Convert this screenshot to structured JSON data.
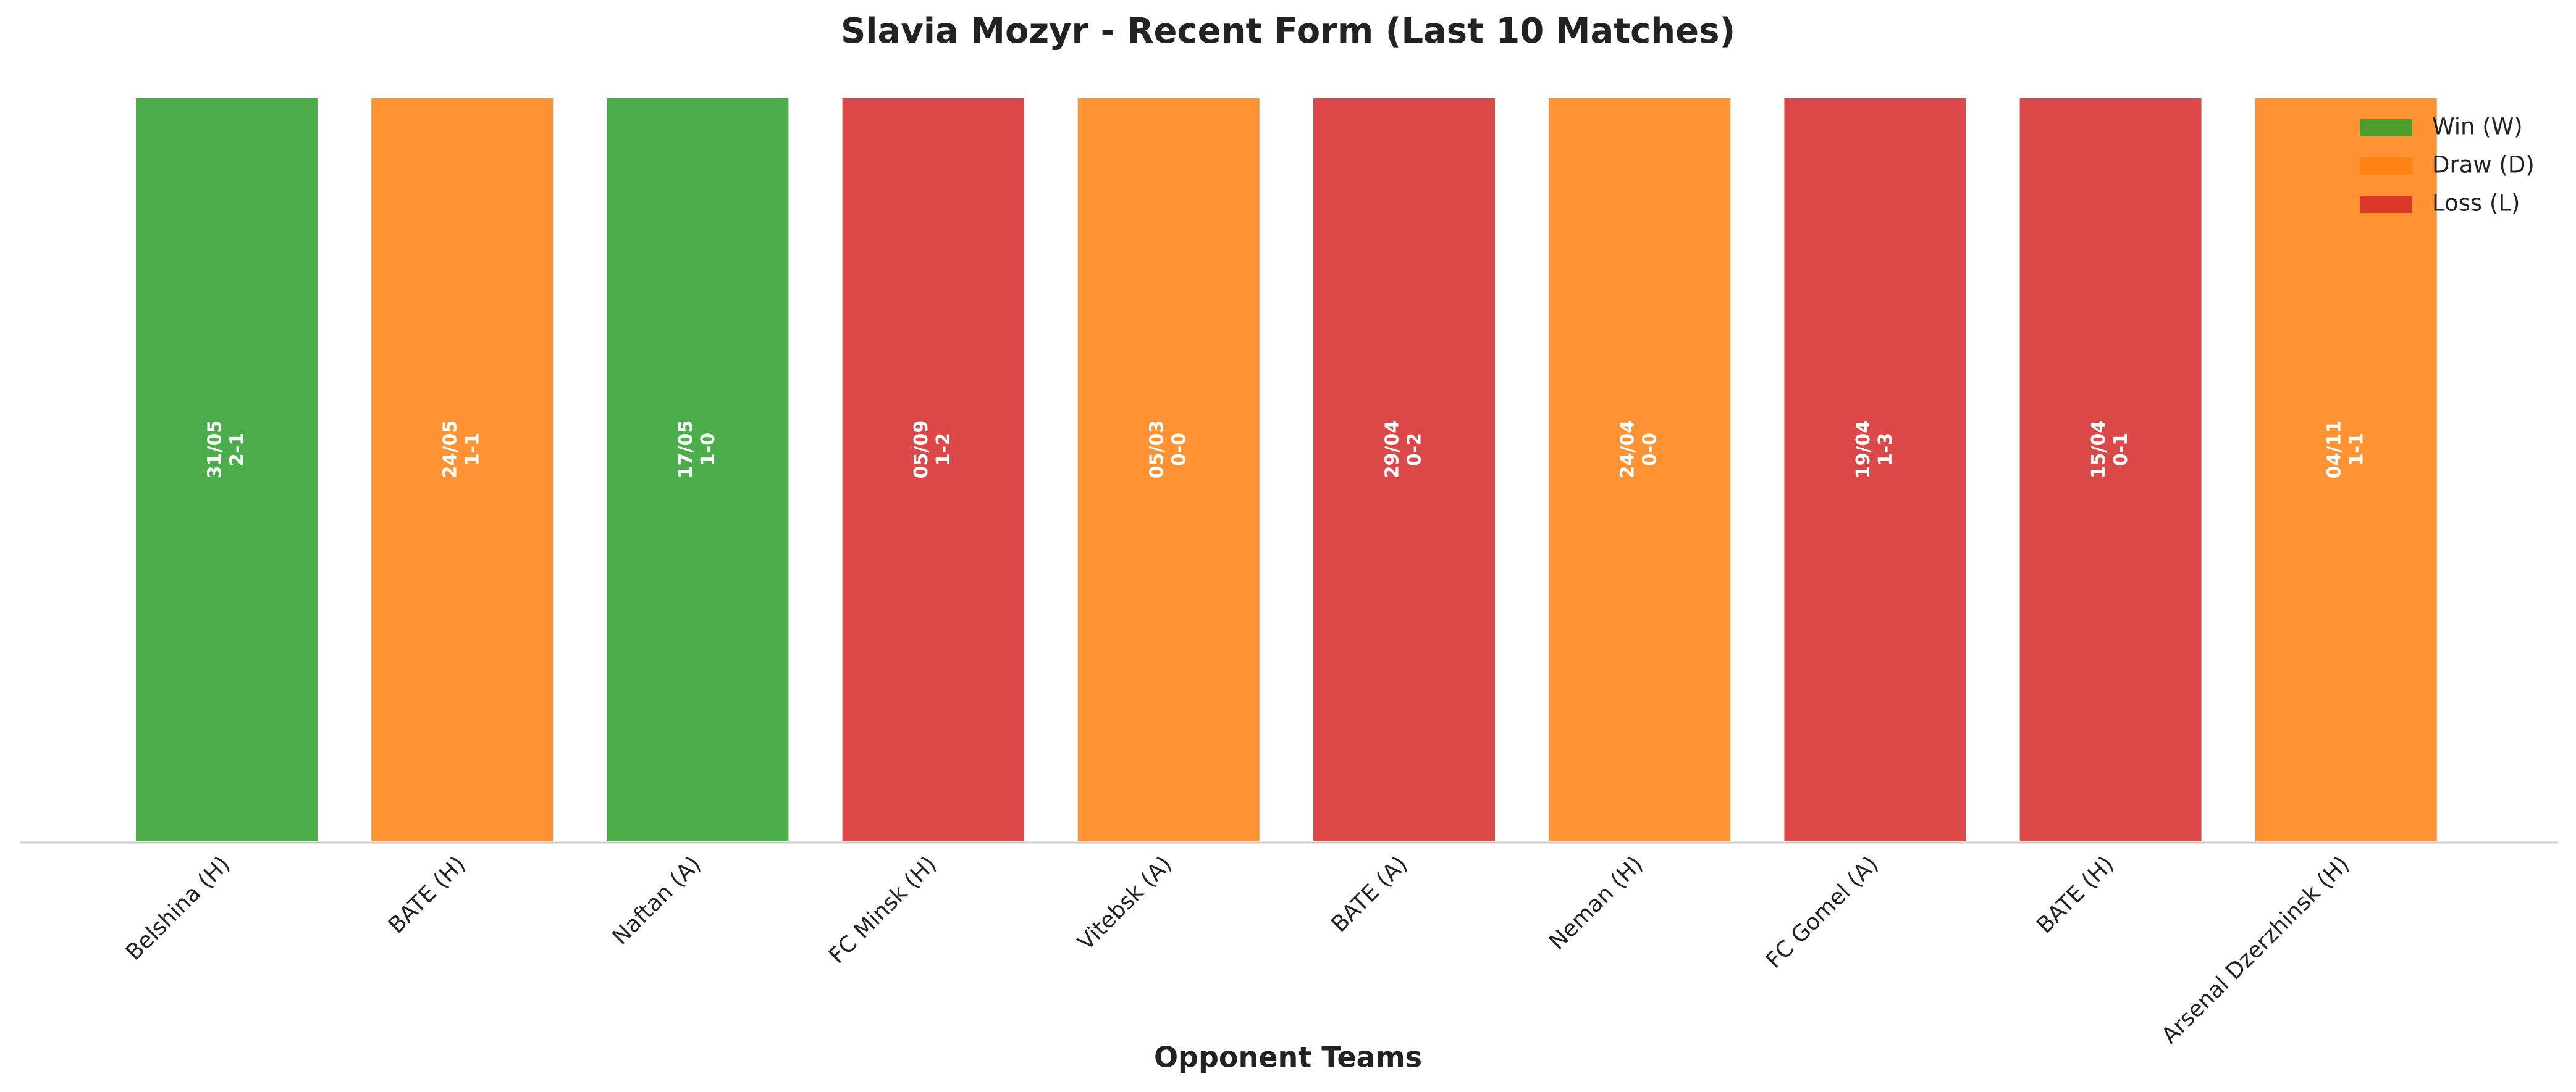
{
  "chart_data": {
    "type": "bar",
    "title": "Slavia Mozyr - Recent Form (Last 10 Matches)",
    "x_label": "Opponent Teams",
    "categories": [
      "Belshina (H)",
      "BATE (H)",
      "Naftan (A)",
      "FC Minsk (H)",
      "Vitebsk (A)",
      "BATE (A)",
      "Neman (H)",
      "FC Gomel (A)",
      "BATE (H)",
      "Arsenal Dzerzhinsk (H)"
    ],
    "dates": [
      "31/05",
      "24/05",
      "17/05",
      "05/09",
      "05/03",
      "29/04",
      "24/04",
      "19/04",
      "15/04",
      "04/11"
    ],
    "scores": [
      "2-1",
      "1-1",
      "1-0",
      "1-2",
      "0-0",
      "0-2",
      "0-0",
      "1-3",
      "0-1",
      "1-1"
    ],
    "results": [
      "W",
      "D",
      "W",
      "L",
      "D",
      "L",
      "D",
      "L",
      "L",
      "D"
    ],
    "values": [
      1,
      1,
      1,
      1,
      1,
      1,
      1,
      1,
      1,
      1
    ],
    "ylim": [
      0,
      1
    ],
    "bar_alpha": 0.85,
    "legend_loc": "upper right",
    "legend": [
      {
        "key": "W",
        "name": "Win (W)",
        "color": "#2ca02c"
      },
      {
        "key": "D",
        "name": "Draw (D)",
        "color": "#ff7f0e"
      },
      {
        "key": "L",
        "name": "Loss (L)",
        "color": "#d62728"
      }
    ]
  }
}
